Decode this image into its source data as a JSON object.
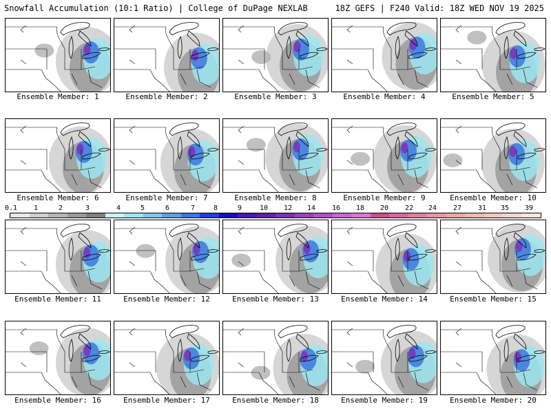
{
  "header": {
    "title": "Snowfall Accumulation (10:1 Ratio) | College of DuPage NEXLAB",
    "run_info": "18Z GEFS | F240 Valid: 18Z WED NOV 19 2025"
  },
  "panels": [
    {
      "label": "Ensemble Member: 1"
    },
    {
      "label": "Ensemble Member: 2"
    },
    {
      "label": "Ensemble Member: 3"
    },
    {
      "label": "Ensemble Member: 4"
    },
    {
      "label": "Ensemble Member: 5"
    },
    {
      "label": "Ensemble Member: 6"
    },
    {
      "label": "Ensemble Member: 7"
    },
    {
      "label": "Ensemble Member: 8"
    },
    {
      "label": "Ensemble Member: 9"
    },
    {
      "label": "Ensemble Member: 10"
    },
    {
      "label": "Ensemble Member: 11"
    },
    {
      "label": "Ensemble Member: 12"
    },
    {
      "label": "Ensemble Member: 13"
    },
    {
      "label": "Ensemble Member: 14"
    },
    {
      "label": "Ensemble Member: 15"
    },
    {
      "label": "Ensemble Member: 16"
    },
    {
      "label": "Ensemble Member: 17"
    },
    {
      "label": "Ensemble Member: 18"
    },
    {
      "label": "Ensemble Member: 19"
    },
    {
      "label": "Ensemble Member: 20"
    }
  ],
  "colorbar": {
    "ticks": [
      "0.1",
      "1",
      "2",
      "3",
      "4",
      "5",
      "6",
      "7",
      "8",
      "9",
      "10",
      "12",
      "14",
      "16",
      "18",
      "20",
      "22",
      "24",
      "27",
      "31",
      "35",
      "39"
    ],
    "colors": [
      "#e8e8e8",
      "#cfcfcf",
      "#b5b5b5",
      "#9a9a9a",
      "#808080",
      "#c8f4f8",
      "#9ce6f0",
      "#7ec8f0",
      "#5aa0e8",
      "#3c78e0",
      "#2040d8",
      "#1414b4",
      "#4a18b0",
      "#6020a8",
      "#7e30b8",
      "#9a40c0",
      "#b450c8",
      "#c864d0",
      "#d678d4",
      "#c8508c",
      "#d8689c",
      "#e0809c",
      "#e894a4",
      "#eca6a6",
      "#f0b8b0",
      "#f4c8bc",
      "#f8d8cc",
      "#fce8dc"
    ]
  }
}
